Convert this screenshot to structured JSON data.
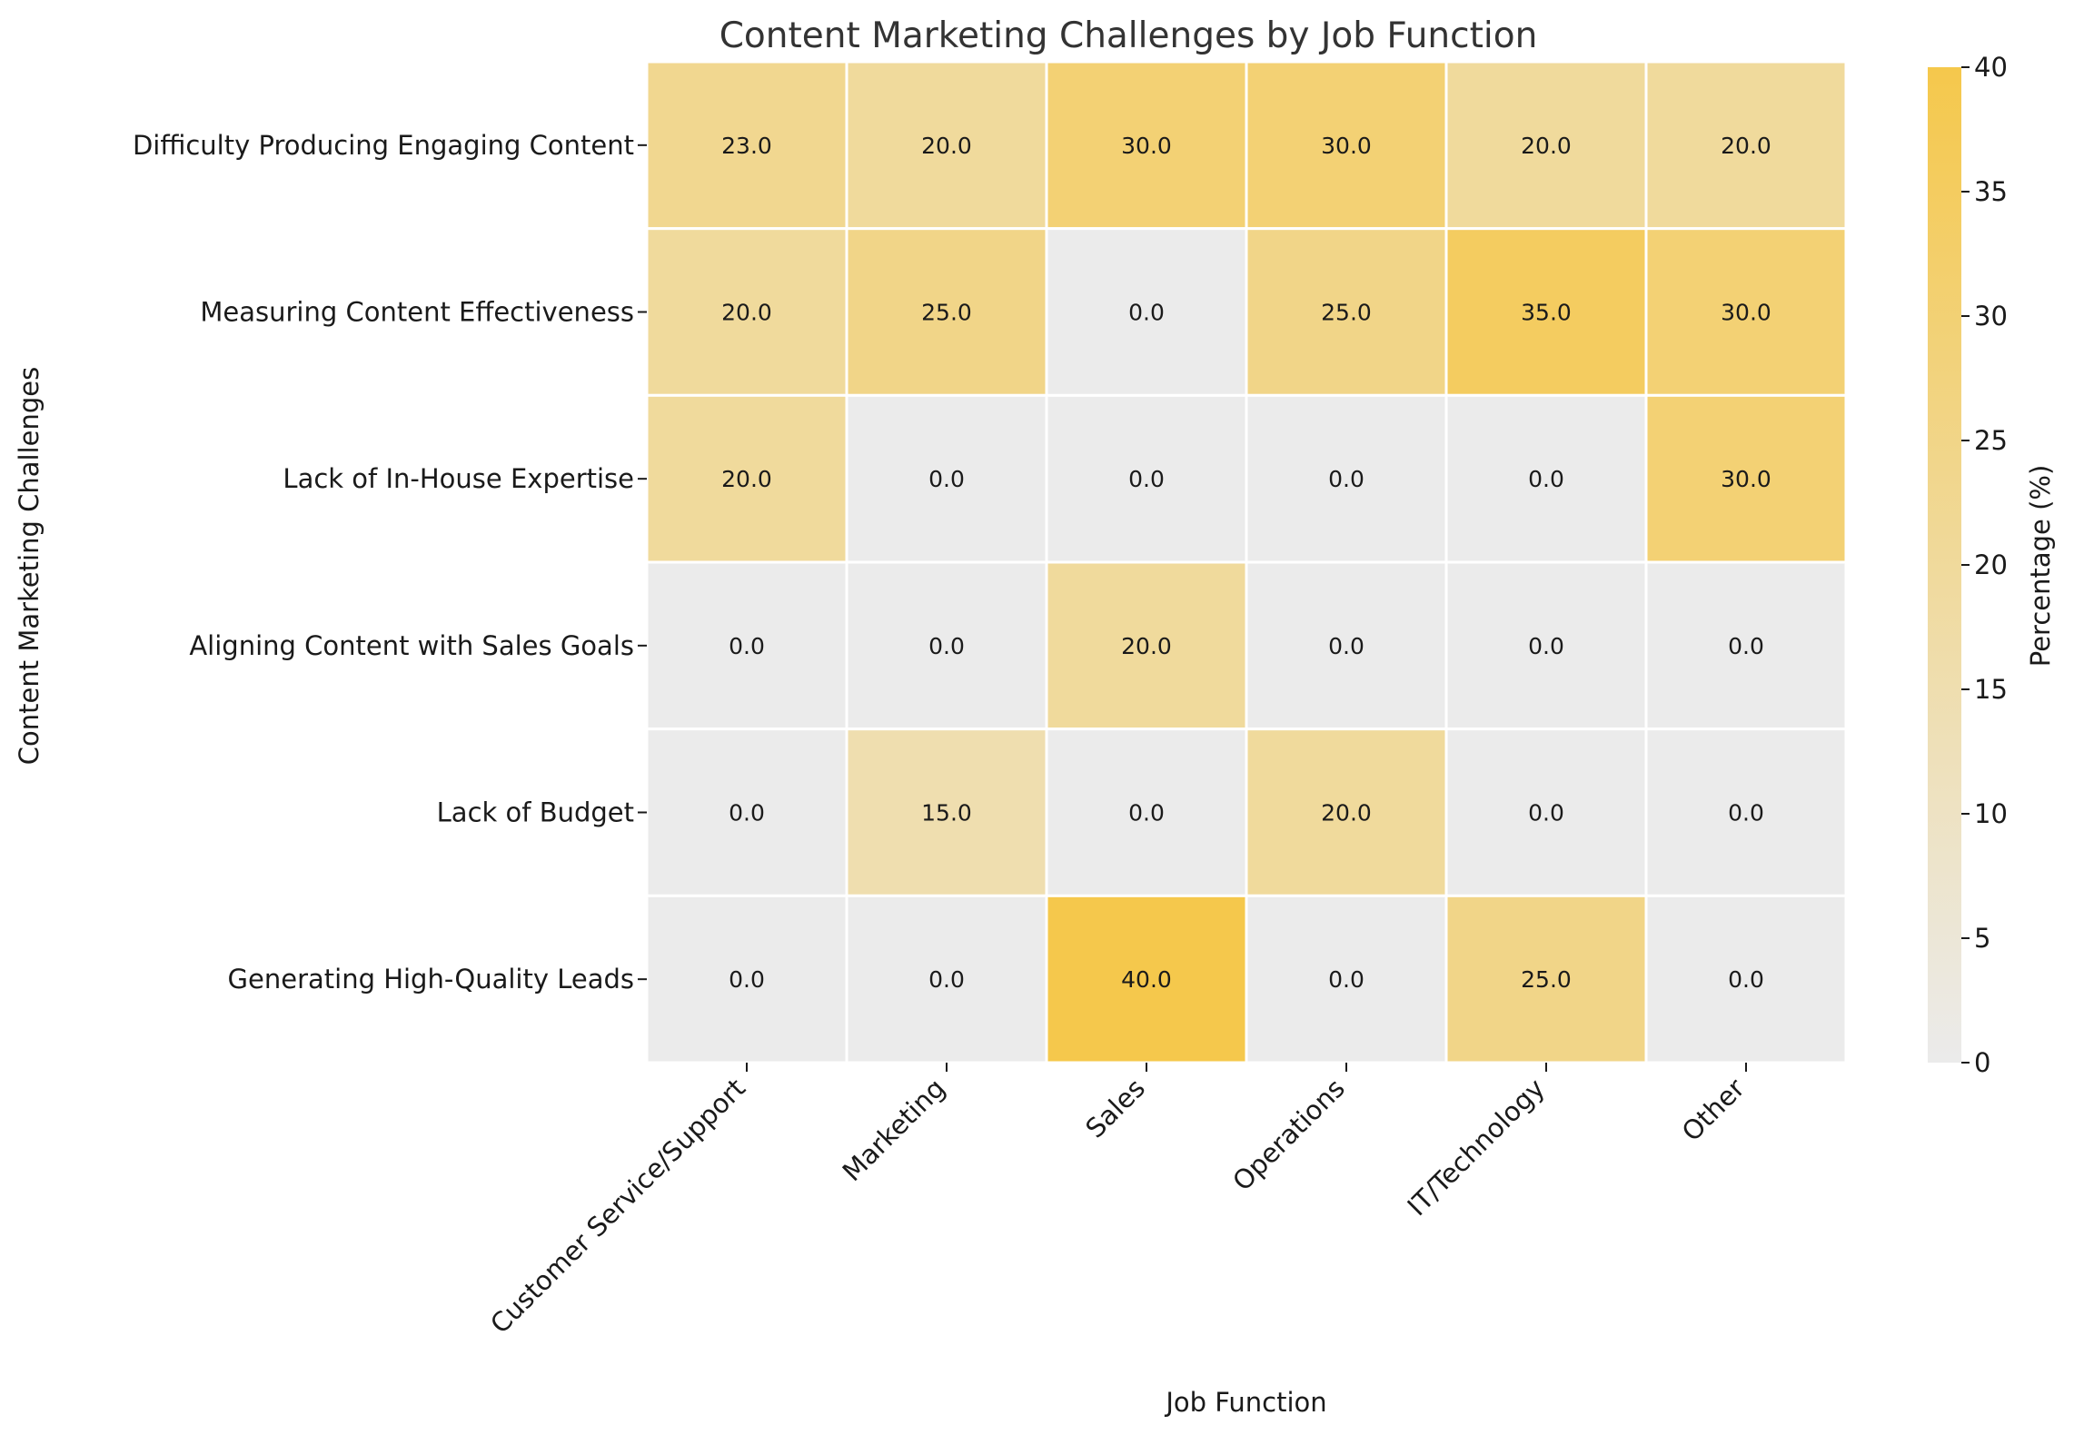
{
  "chart_data": {
    "type": "heatmap",
    "title": "Content Marketing Challenges by Job Function",
    "xlabel": "Job Function",
    "ylabel": "Content Marketing Challenges",
    "colorbar_label": "Percentage (%)",
    "colorbar_range": [
      0,
      40
    ],
    "colorbar_ticks": [
      0,
      5,
      10,
      15,
      20,
      25,
      30,
      35,
      40
    ],
    "x_categories": [
      "Customer Service/Support",
      "Marketing",
      "Sales",
      "Operations",
      "IT/Technology",
      "Other"
    ],
    "y_categories": [
      "Difficulty Producing Engaging Content",
      "Measuring Content Effectiveness",
      "Lack of In-House Expertise",
      "Aligning Content with Sales Goals",
      "Lack of Budget",
      "Generating High-Quality Leads"
    ],
    "values": [
      [
        23,
        20,
        30,
        30,
        20,
        20
      ],
      [
        20,
        25,
        0,
        25,
        35,
        30
      ],
      [
        20,
        0,
        0,
        0,
        0,
        30
      ],
      [
        0,
        0,
        20,
        0,
        0,
        0
      ],
      [
        0,
        15,
        0,
        20,
        0,
        0
      ],
      [
        0,
        0,
        40,
        0,
        25,
        0
      ]
    ],
    "value_format": "one-decimal",
    "colors": {
      "low": "#ebebeb",
      "high": "#f5c84c",
      "cell_border": "#ffffff"
    }
  }
}
